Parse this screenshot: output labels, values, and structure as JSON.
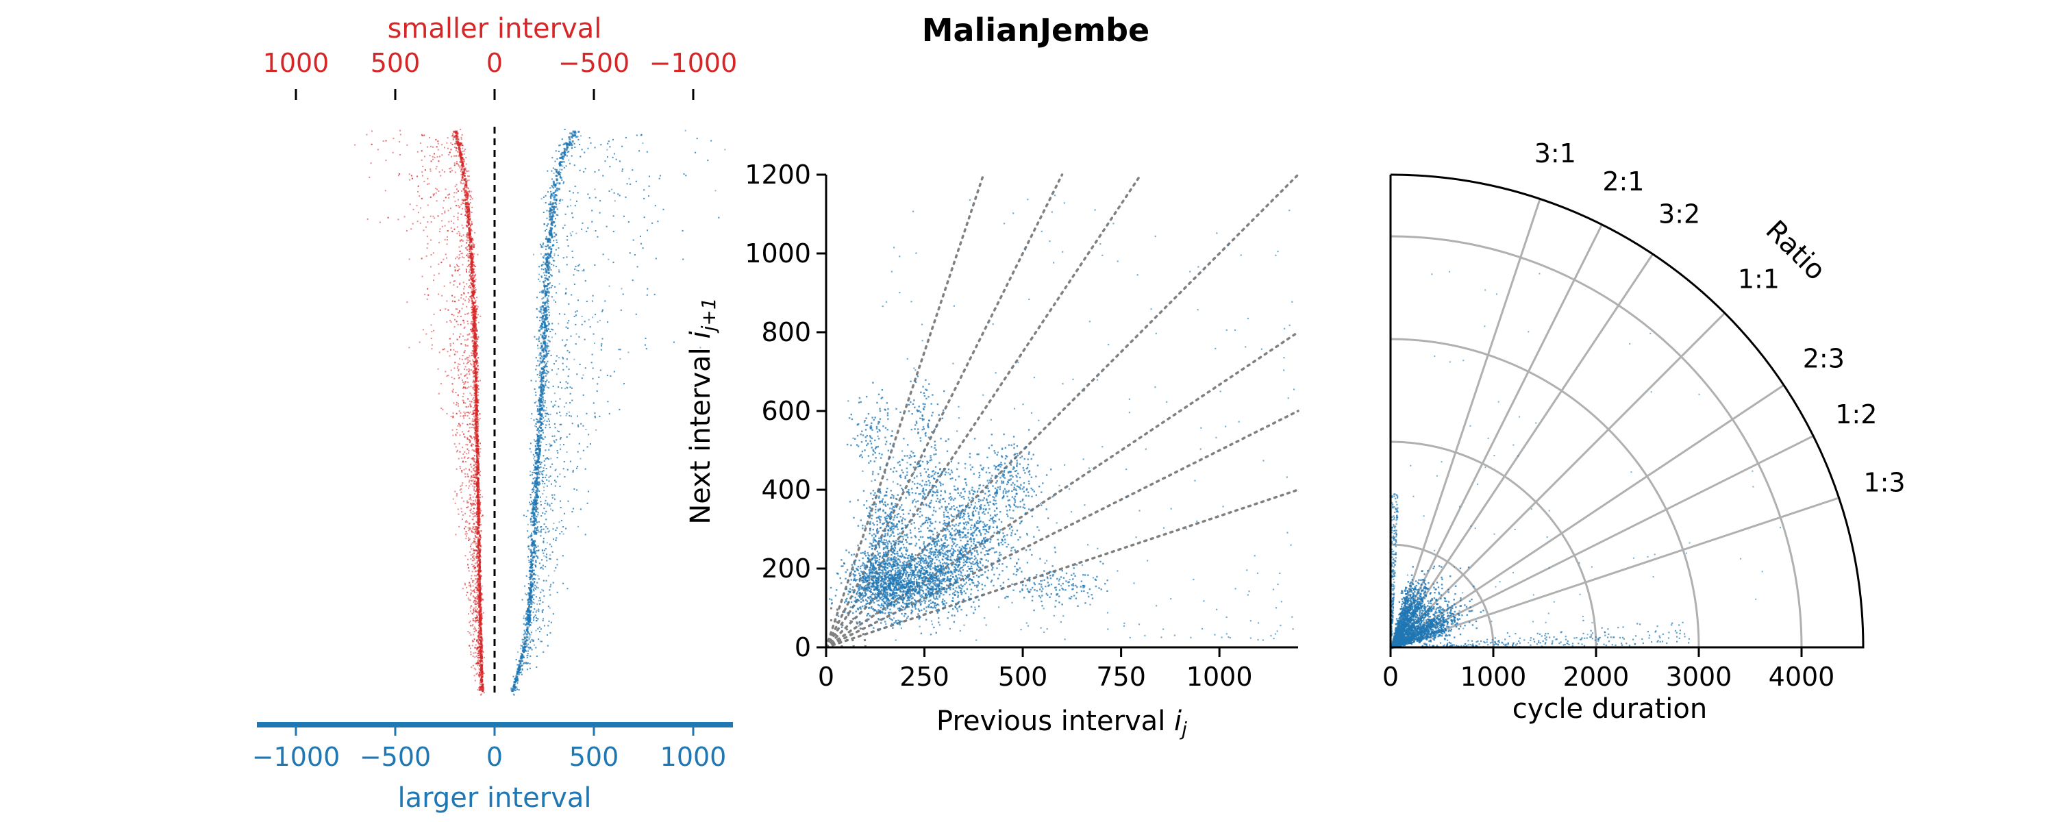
{
  "title": "MalianJembe",
  "colors": {
    "smaller": "#d62728",
    "larger": "#1f77b4",
    "guide": "#808080",
    "grid": "#b0b0b0"
  },
  "chart_data": [
    {
      "type": "scatter",
      "name": "interval-difference-profile",
      "top_axis": {
        "label": "smaller interval",
        "ticks": [
          1000,
          500,
          0,
          -500,
          -1000
        ],
        "tick_labels": [
          "1000",
          "500",
          "0",
          "−500",
          "−1000"
        ],
        "range": [
          1250,
          -1200
        ]
      },
      "bottom_axis": {
        "label": "larger interval",
        "ticks": [
          -1000,
          -500,
          0,
          500,
          1000
        ],
        "tick_labels": [
          "−1000",
          "−500",
          "0",
          "500",
          "1000"
        ],
        "range": [
          -1200,
          1200
        ]
      },
      "zero_line": true,
      "series": [
        {
          "name": "smaller interval",
          "color": "#d62728",
          "profile": [
            [
              0.0,
              -200
            ],
            [
              0.05,
              -170
            ],
            [
              0.1,
              -150
            ],
            [
              0.2,
              -125
            ],
            [
              0.3,
              -110
            ],
            [
              0.4,
              -100
            ],
            [
              0.5,
              -95
            ],
            [
              0.6,
              -90
            ],
            [
              0.7,
              -85
            ],
            [
              0.8,
              -80
            ],
            [
              0.9,
              -75
            ],
            [
              1.0,
              -65
            ]
          ]
        },
        {
          "name": "larger interval",
          "color": "#1f77b4",
          "profile": [
            [
              0.0,
              400
            ],
            [
              0.05,
              330
            ],
            [
              0.1,
              300
            ],
            [
              0.2,
              270
            ],
            [
              0.3,
              250
            ],
            [
              0.4,
              240
            ],
            [
              0.5,
              225
            ],
            [
              0.6,
              210
            ],
            [
              0.7,
              195
            ],
            [
              0.8,
              180
            ],
            [
              0.9,
              160
            ],
            [
              1.0,
              85
            ]
          ]
        }
      ]
    },
    {
      "type": "scatter",
      "name": "return-map",
      "xlabel": "Previous interval",
      "xlabel_var": "i",
      "xlabel_sub": "j",
      "ylabel": "Next interval",
      "ylabel_var": "i",
      "ylabel_sub": "j+1",
      "xlim": [
        0,
        1200
      ],
      "ylim": [
        0,
        1200
      ],
      "xticks": [
        0,
        250,
        500,
        750,
        1000
      ],
      "yticks": [
        0,
        200,
        400,
        600,
        800,
        1000,
        1200
      ],
      "ratio_lines": [
        3,
        2,
        1.5,
        1,
        0.6667,
        0.5,
        0.3333
      ],
      "clusters": [
        {
          "x": 150,
          "y": 160,
          "sx": 50,
          "sy": 40,
          "weight": 3
        },
        {
          "x": 260,
          "y": 170,
          "sx": 60,
          "sy": 40,
          "weight": 2
        },
        {
          "x": 330,
          "y": 240,
          "sx": 70,
          "sy": 45,
          "weight": 1.5
        },
        {
          "x": 150,
          "y": 300,
          "sx": 30,
          "sy": 60,
          "weight": 1
        },
        {
          "x": 250,
          "y": 420,
          "sx": 40,
          "sy": 60,
          "weight": 0.6
        },
        {
          "x": 380,
          "y": 340,
          "sx": 70,
          "sy": 50,
          "weight": 1
        },
        {
          "x": 460,
          "y": 440,
          "sx": 40,
          "sy": 40,
          "weight": 0.5
        },
        {
          "x": 580,
          "y": 160,
          "sx": 60,
          "sy": 25,
          "weight": 0.4
        },
        {
          "x": 120,
          "y": 550,
          "sx": 25,
          "sy": 50,
          "weight": 0.3
        },
        {
          "x": 250,
          "y": 600,
          "sx": 25,
          "sy": 40,
          "weight": 0.2
        }
      ]
    },
    {
      "type": "scatter",
      "name": "polar-ratio",
      "projection": "polar-quarter",
      "xlabel": "cycle duration",
      "rlim": [
        0,
        4600
      ],
      "rticks": [
        0,
        1000,
        2000,
        3000,
        4000
      ],
      "rtick_labels": [
        "0",
        "1000",
        "2000",
        "3000",
        "4000"
      ],
      "ratio_label": "Ratio",
      "ratios": [
        {
          "label": "3:1",
          "value": 3
        },
        {
          "label": "2:1",
          "value": 2
        },
        {
          "label": "3:2",
          "value": 1.5
        },
        {
          "label": "1:1",
          "value": 1
        },
        {
          "label": "2:3",
          "value": 0.6667
        },
        {
          "label": "1:2",
          "value": 0.5
        },
        {
          "label": "1:3",
          "value": 0.3333
        }
      ]
    }
  ]
}
